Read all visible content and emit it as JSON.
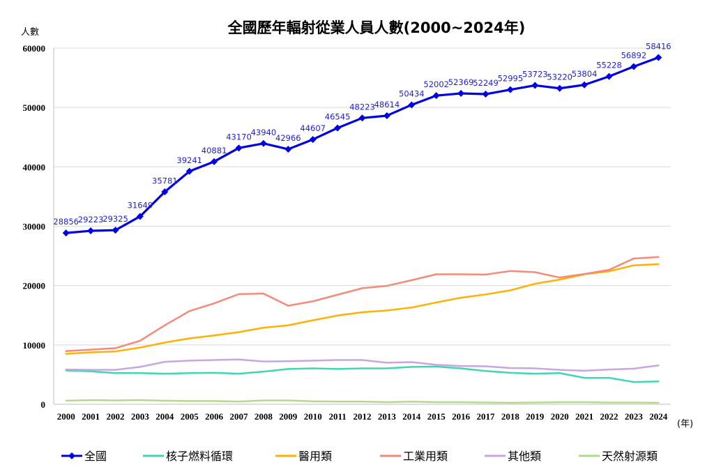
{
  "chart_data": {
    "type": "line",
    "title": "全國歷年輻射從業人員人數(2000~2024年)",
    "ylabel": "人數",
    "xlabel": "(年)",
    "ylim": [
      0,
      60000
    ],
    "yticks": [
      0,
      10000,
      20000,
      30000,
      40000,
      50000,
      60000
    ],
    "grid": true,
    "legend_position": "bottom",
    "x": [
      "2000",
      "2001",
      "2002",
      "2003",
      "2004",
      "2005",
      "2006",
      "2007",
      "2008",
      "2009",
      "2010",
      "2011",
      "2012",
      "2013",
      "2014",
      "2015",
      "2016",
      "2017",
      "2018",
      "2019",
      "2020",
      "2021",
      "2022",
      "2023",
      "2024"
    ],
    "series": [
      {
        "name": "全國",
        "color": "#0000e6",
        "marker": "diamond",
        "show_labels": true,
        "values": [
          28856,
          29223,
          29325,
          31649,
          35781,
          39241,
          40881,
          43170,
          43940,
          42966,
          44607,
          46545,
          48223,
          48614,
          50434,
          52002,
          52369,
          52249,
          52995,
          53723,
          53220,
          53804,
          55228,
          56892,
          58416
        ]
      },
      {
        "name": "核子燃料循環",
        "color": "#3fd6b4",
        "values": [
          5700,
          5550,
          5250,
          5250,
          5150,
          5250,
          5300,
          5150,
          5500,
          5950,
          6050,
          5950,
          6050,
          6050,
          6300,
          6350,
          6050,
          5600,
          5300,
          5150,
          5250,
          4450,
          4450,
          3750,
          3850
        ]
      },
      {
        "name": "醫用類",
        "color": "#ffb000",
        "values": [
          8500,
          8750,
          8900,
          9550,
          10400,
          11100,
          11600,
          12150,
          12900,
          13300,
          14150,
          14950,
          15500,
          15800,
          16300,
          17150,
          17950,
          18500,
          19200,
          20300,
          21000,
          21900,
          22400,
          23400,
          23600
        ]
      },
      {
        "name": "工業用類",
        "color": "#f5897a",
        "values": [
          8950,
          9200,
          9450,
          10700,
          13300,
          15700,
          17000,
          18550,
          18650,
          16600,
          17350,
          18450,
          19550,
          19950,
          20900,
          21900,
          21900,
          21850,
          22450,
          22250,
          21350,
          21950,
          22650,
          24550,
          24800
        ]
      },
      {
        "name": "其他類",
        "color": "#c9a6e0",
        "values": [
          5850,
          5800,
          5800,
          6300,
          7150,
          7350,
          7450,
          7550,
          7200,
          7250,
          7350,
          7450,
          7450,
          7000,
          7100,
          6650,
          6450,
          6400,
          6100,
          6050,
          5800,
          5650,
          5850,
          6000,
          6550
        ]
      },
      {
        "name": "天然射源類",
        "color": "#b5d98c",
        "values": [
          600,
          700,
          650,
          700,
          600,
          550,
          550,
          450,
          650,
          650,
          500,
          450,
          450,
          350,
          450,
          350,
          350,
          300,
          250,
          300,
          350,
          350,
          300,
          300,
          250
        ]
      }
    ]
  }
}
